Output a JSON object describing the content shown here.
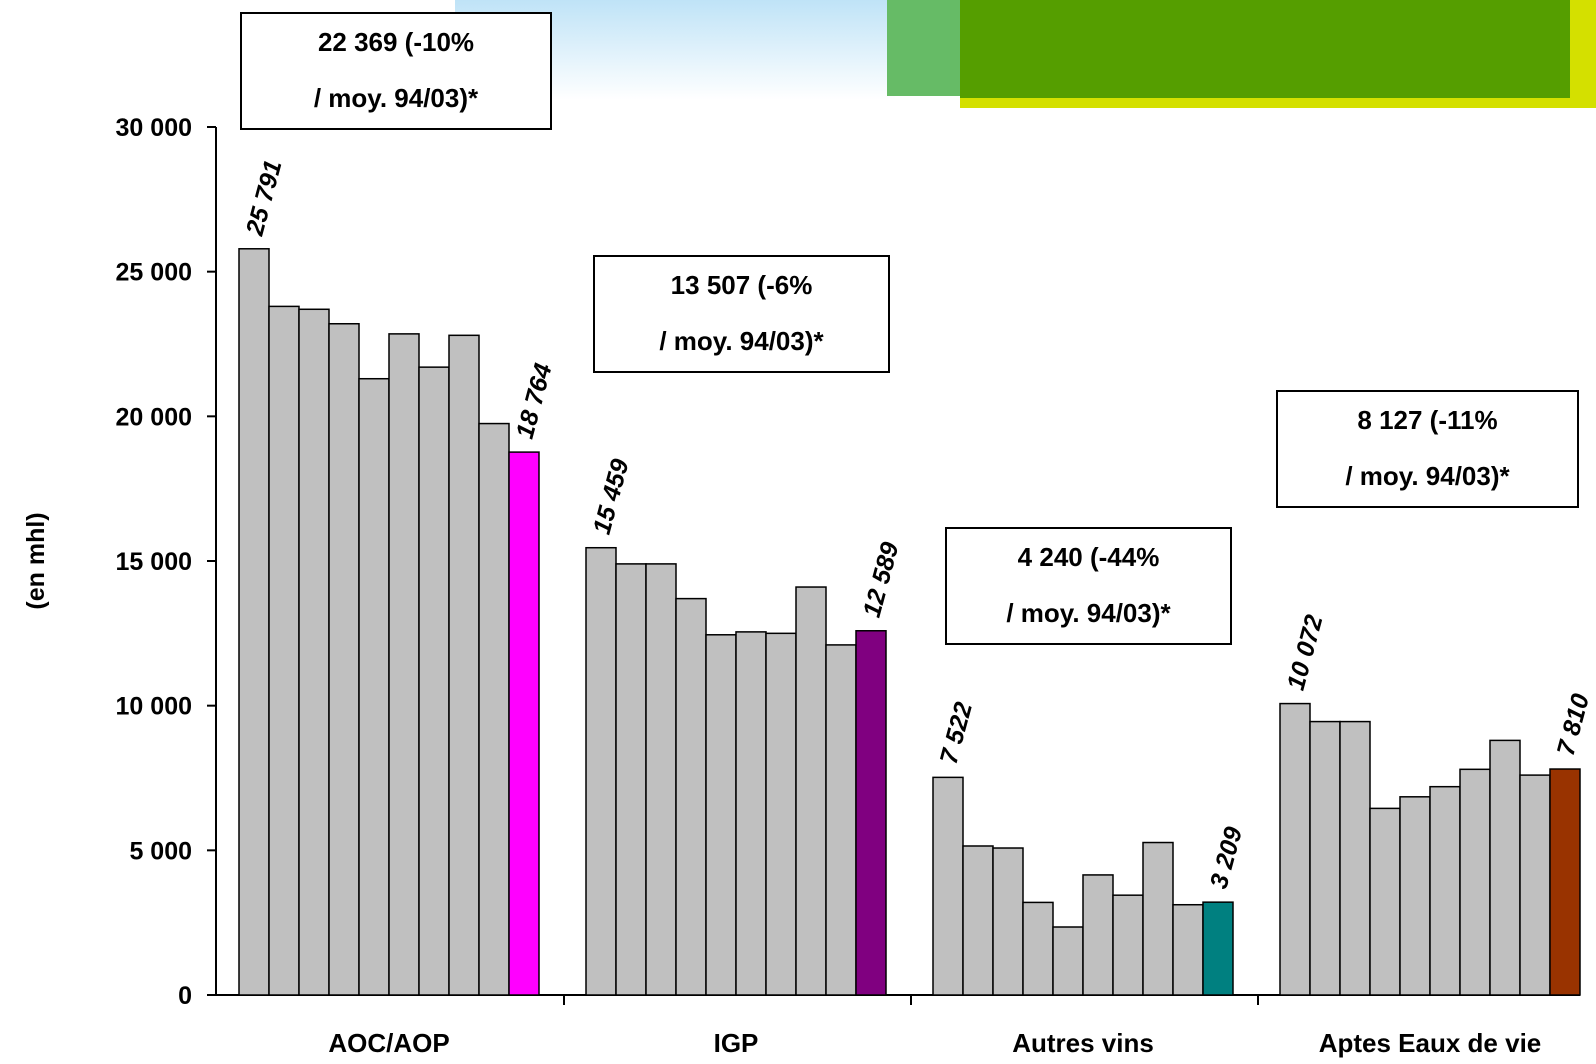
{
  "chart_data": {
    "type": "bar",
    "ylabel": "(en mhl)",
    "ylim": [
      0,
      30000
    ],
    "y_ticks": [
      "0",
      "5 000",
      "10 000",
      "15 000",
      "20 000",
      "25 000",
      "30 000"
    ],
    "groups": [
      {
        "category": "AOC/AOP",
        "values": [
          25791,
          23800,
          23700,
          23200,
          21300,
          22850,
          21700,
          22800,
          19750,
          18764
        ],
        "highlight_color": "#ff00ff",
        "labels": {
          "first": "25 791",
          "last": "18 764"
        },
        "annotation": [
          "22 369 (-10%",
          "/ moy. 94/03)*"
        ]
      },
      {
        "category": "IGP",
        "values": [
          15459,
          14900,
          14900,
          13700,
          12450,
          12550,
          12500,
          14100,
          12100,
          12589
        ],
        "highlight_color": "#800080",
        "labels": {
          "first": "15 459",
          "last": "12 589"
        },
        "annotation": [
          "13 507 (-6%",
          "/ moy. 94/03)*"
        ]
      },
      {
        "category": "Autres vins",
        "values": [
          7522,
          5150,
          5080,
          3200,
          2350,
          4150,
          3450,
          5270,
          3120,
          3209
        ],
        "highlight_color": "#008080",
        "labels": {
          "first": "7 522",
          "last": "3 209"
        },
        "annotation": [
          "4 240 (-44%",
          "/ moy. 94/03)*"
        ]
      },
      {
        "category": "Aptes Eaux de vie",
        "values": [
          10072,
          9450,
          9450,
          6450,
          6850,
          7200,
          7800,
          8800,
          7600,
          7810
        ],
        "highlight_color": "#993300",
        "labels": {
          "first": "10 072",
          "last": "7 810"
        },
        "annotation": [
          "8 127 (-11%",
          "/ moy. 94/03)*"
        ]
      }
    ],
    "bar_color": "#c0c0c0",
    "grid": false,
    "legend": "none"
  },
  "decor": {
    "colors": {
      "sky": "#bfe3f7",
      "green_light": "#66bb66",
      "green_dark": "#559e00",
      "yellow": "#d4e000"
    }
  }
}
